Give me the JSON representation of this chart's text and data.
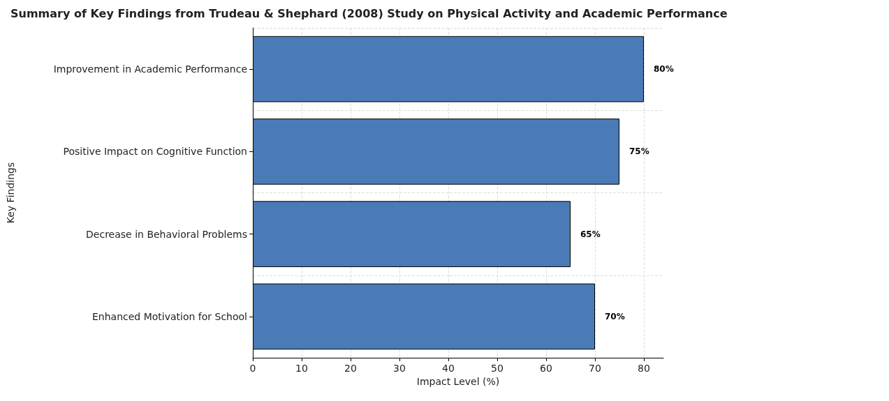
{
  "chart_data": {
    "type": "bar",
    "orientation": "horizontal",
    "title": "Summary of Key Findings from Trudeau & Shephard (2008) Study on Physical Activity and Academic Performance",
    "xlabel": "Impact Level (%)",
    "ylabel": "Key Findings",
    "categories": [
      "Improvement in Academic Performance",
      "Positive Impact on Cognitive Function",
      "Decrease in Behavioral Problems",
      "Enhanced Motivation for School"
    ],
    "values": [
      80,
      75,
      65,
      70
    ],
    "color": "#4a7bb7",
    "value_labels": [
      "80%",
      "75%",
      "65%",
      "70%"
    ],
    "xlim": [
      0,
      84
    ],
    "xticks": [
      0,
      10,
      20,
      30,
      40,
      50,
      60,
      70,
      80
    ],
    "grid": true
  }
}
